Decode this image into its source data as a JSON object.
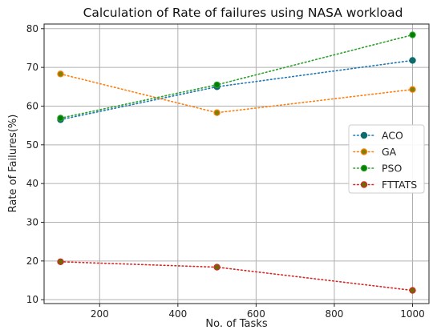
{
  "chart_data": {
    "type": "line",
    "title": "Calculation of Rate of failures using NASA workload",
    "xlabel": "No. of Tasks",
    "ylabel": "Rate of Failures(%)",
    "x": [
      100,
      500,
      1000
    ],
    "xlim": [
      58,
      1042
    ],
    "ylim": [
      9.0,
      81.2
    ],
    "xticks": [
      200,
      400,
      600,
      800,
      1000
    ],
    "yticks": [
      10,
      20,
      30,
      40,
      50,
      60,
      70,
      80
    ],
    "grid": true,
    "legend_position": "center-right",
    "series": [
      {
        "name": "ACO",
        "values": [
          56.5,
          65.0,
          71.8
        ],
        "line_color": "#1f77b4",
        "marker_color": "#0e6b6b",
        "marker_edge": "#0e6b6b",
        "line_style": "dotted"
      },
      {
        "name": "GA",
        "values": [
          68.3,
          58.3,
          64.3
        ],
        "line_color": "#ff7f0e",
        "marker_color": "#808000",
        "marker_edge": "#ff7f0e",
        "line_style": "dotted"
      },
      {
        "name": "PSO",
        "values": [
          56.9,
          65.5,
          78.4
        ],
        "line_color": "#2ca02c",
        "marker_color": "#008000",
        "marker_edge": "#2ca02c",
        "line_style": "dotted"
      },
      {
        "name": "FTTATS",
        "values": [
          19.8,
          18.4,
          12.4
        ],
        "line_color": "#d62728",
        "marker_color": "#6b6b00",
        "marker_edge": "#d62728",
        "line_style": "dotted"
      }
    ]
  }
}
